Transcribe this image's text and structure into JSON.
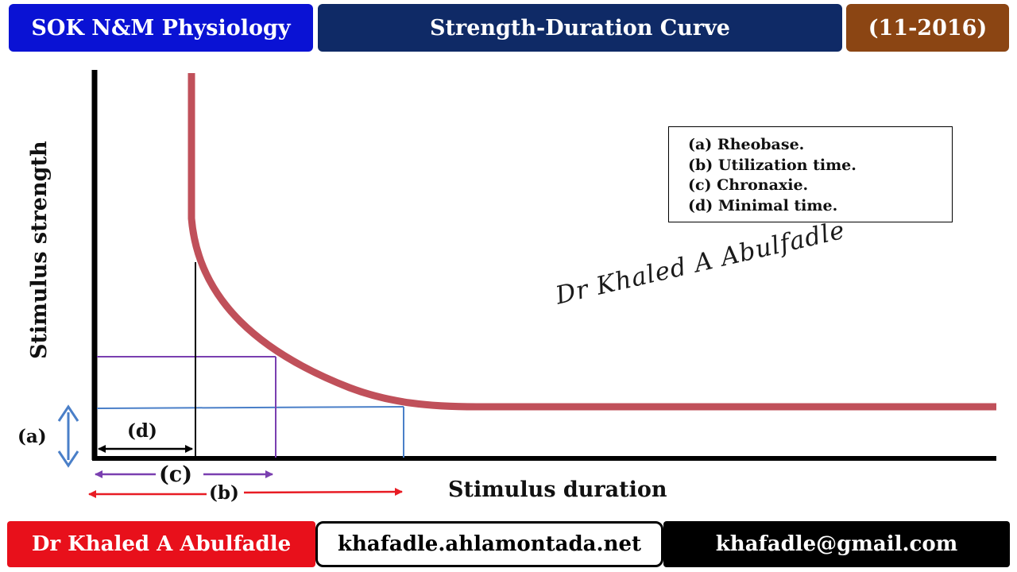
{
  "header": {
    "left": "SOK N&M Physiology",
    "center": "Strength-Duration Curve",
    "right": "(11-2016)"
  },
  "legend": [
    "(a) Rheobase.",
    "(b) Utilization time.",
    "(c) Chronaxie.",
    "(d) Minimal time."
  ],
  "axes": {
    "y_label": "Stimulus strength",
    "x_label": "Stimulus duration"
  },
  "markers": {
    "a": "(a)",
    "b": "(b)",
    "c": "(c)",
    "d": "(d)"
  },
  "signature": "Dr Khaled A Abulfadle",
  "footer": {
    "left": "Dr Khaled A Abulfadle",
    "center": "khafadle.ahlamontada.net",
    "right": "khafadle@gmail.com"
  },
  "colors": {
    "header_left": "#0a12d4",
    "header_center": "#0f2a66",
    "header_right": "#8b4513",
    "footer_left": "#e8101b",
    "footer_right": "#000000",
    "curve": "#c0505a",
    "rheobase_line": "#4a7fc8",
    "chronaxie_line": "#7a3fb0",
    "utilization_arrow": "#e81c24"
  }
}
